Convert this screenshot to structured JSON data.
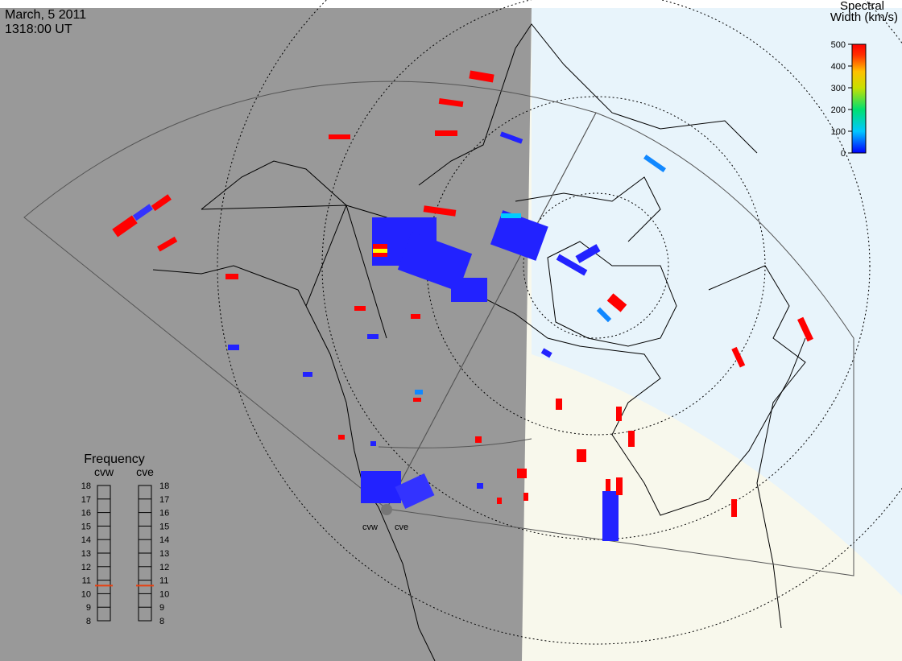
{
  "header": {
    "date": "March, 5 2011",
    "time": "1318:00 UT"
  },
  "colorbar": {
    "title": [
      "Spectral",
      "Width (km/s)"
    ],
    "lim": [
      0,
      500
    ],
    "ticks": [
      0,
      100,
      200,
      300,
      400,
      500
    ]
  },
  "frequency": {
    "title": "Frequency",
    "lim": [
      8,
      18
    ],
    "ticks": [
      8,
      9,
      10,
      11,
      12,
      13,
      14,
      15,
      16,
      17,
      18
    ],
    "radars": [
      {
        "name": "cvw",
        "value": 10.6
      },
      {
        "name": "cve",
        "value": 10.6
      }
    ]
  },
  "sites": [
    "cvw",
    "cve"
  ]
}
